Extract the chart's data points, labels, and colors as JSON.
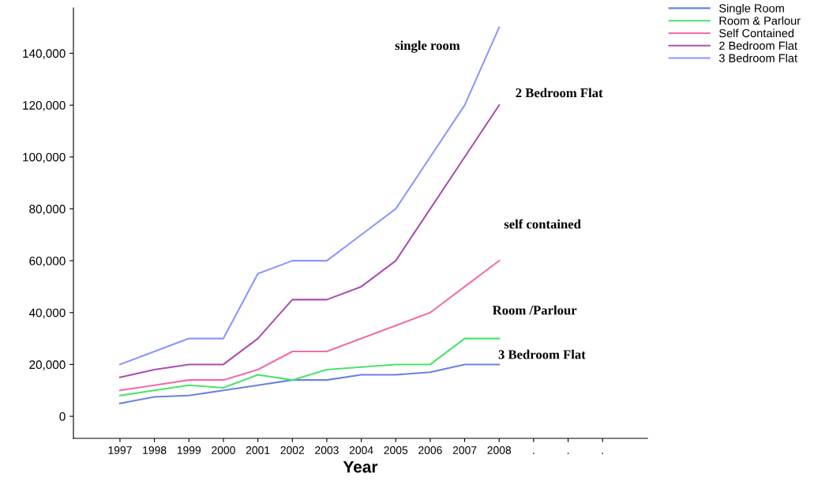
{
  "chart_data": {
    "type": "line",
    "xlabel": "Year",
    "categories": [
      "1997",
      "1998",
      "1999",
      "2000",
      "2001",
      "2002",
      "2003",
      "2004",
      "2005",
      "2006",
      "2007",
      "2008",
      ".",
      ".",
      "."
    ],
    "series": [
      {
        "name": "Single Room",
        "color": "#6a82e0",
        "values": [
          5000,
          7500,
          8000,
          10000,
          12000,
          14000,
          14000,
          16000,
          16000,
          17000,
          20000,
          20000,
          null,
          null,
          null
        ]
      },
      {
        "name": "Room & Parlour",
        "color": "#4be36a",
        "values": [
          8000,
          10000,
          12000,
          11000,
          16000,
          14000,
          18000,
          19000,
          20000,
          20000,
          30000,
          30000,
          null,
          null,
          null
        ]
      },
      {
        "name": "Self Contained",
        "color": "#f06eaa",
        "values": [
          10000,
          12000,
          14000,
          14000,
          18000,
          25000,
          25000,
          30000,
          35000,
          40000,
          50000,
          60000,
          null,
          null,
          null
        ]
      },
      {
        "name": "2 Bedroom Flat",
        "color": "#a94fb0",
        "values": [
          15000,
          18000,
          20000,
          20000,
          30000,
          45000,
          45000,
          50000,
          60000,
          80000,
          100000,
          120000,
          null,
          null,
          null
        ]
      },
      {
        "name": "3 Bedroom Flat",
        "color": "#8c96ff",
        "values": [
          20000,
          25000,
          30000,
          30000,
          55000,
          60000,
          60000,
          70000,
          80000,
          100000,
          120000,
          150000,
          null,
          null,
          null
        ]
      }
    ],
    "ylim": [
      -8500,
      157500
    ],
    "yticks": [
      {
        "value": 0,
        "label": "0"
      },
      {
        "value": 20000,
        "label": "20,000"
      },
      {
        "value": 40000,
        "label": "40,000"
      },
      {
        "value": 60000,
        "label": "60,000"
      },
      {
        "value": 80000,
        "label": "80,000"
      },
      {
        "value": 100000,
        "label": "100,000"
      },
      {
        "value": 120000,
        "label": "120,000"
      },
      {
        "value": 140000,
        "label": "140,000"
      }
    ],
    "annotations": [
      "single room",
      "2 Bedroom Flat",
      "self contained",
      "Room /Parlour",
      "3 Bedroom Flat"
    ],
    "legend": "top right",
    "grid": false,
    "line_style": "solid",
    "marker": "none"
  }
}
